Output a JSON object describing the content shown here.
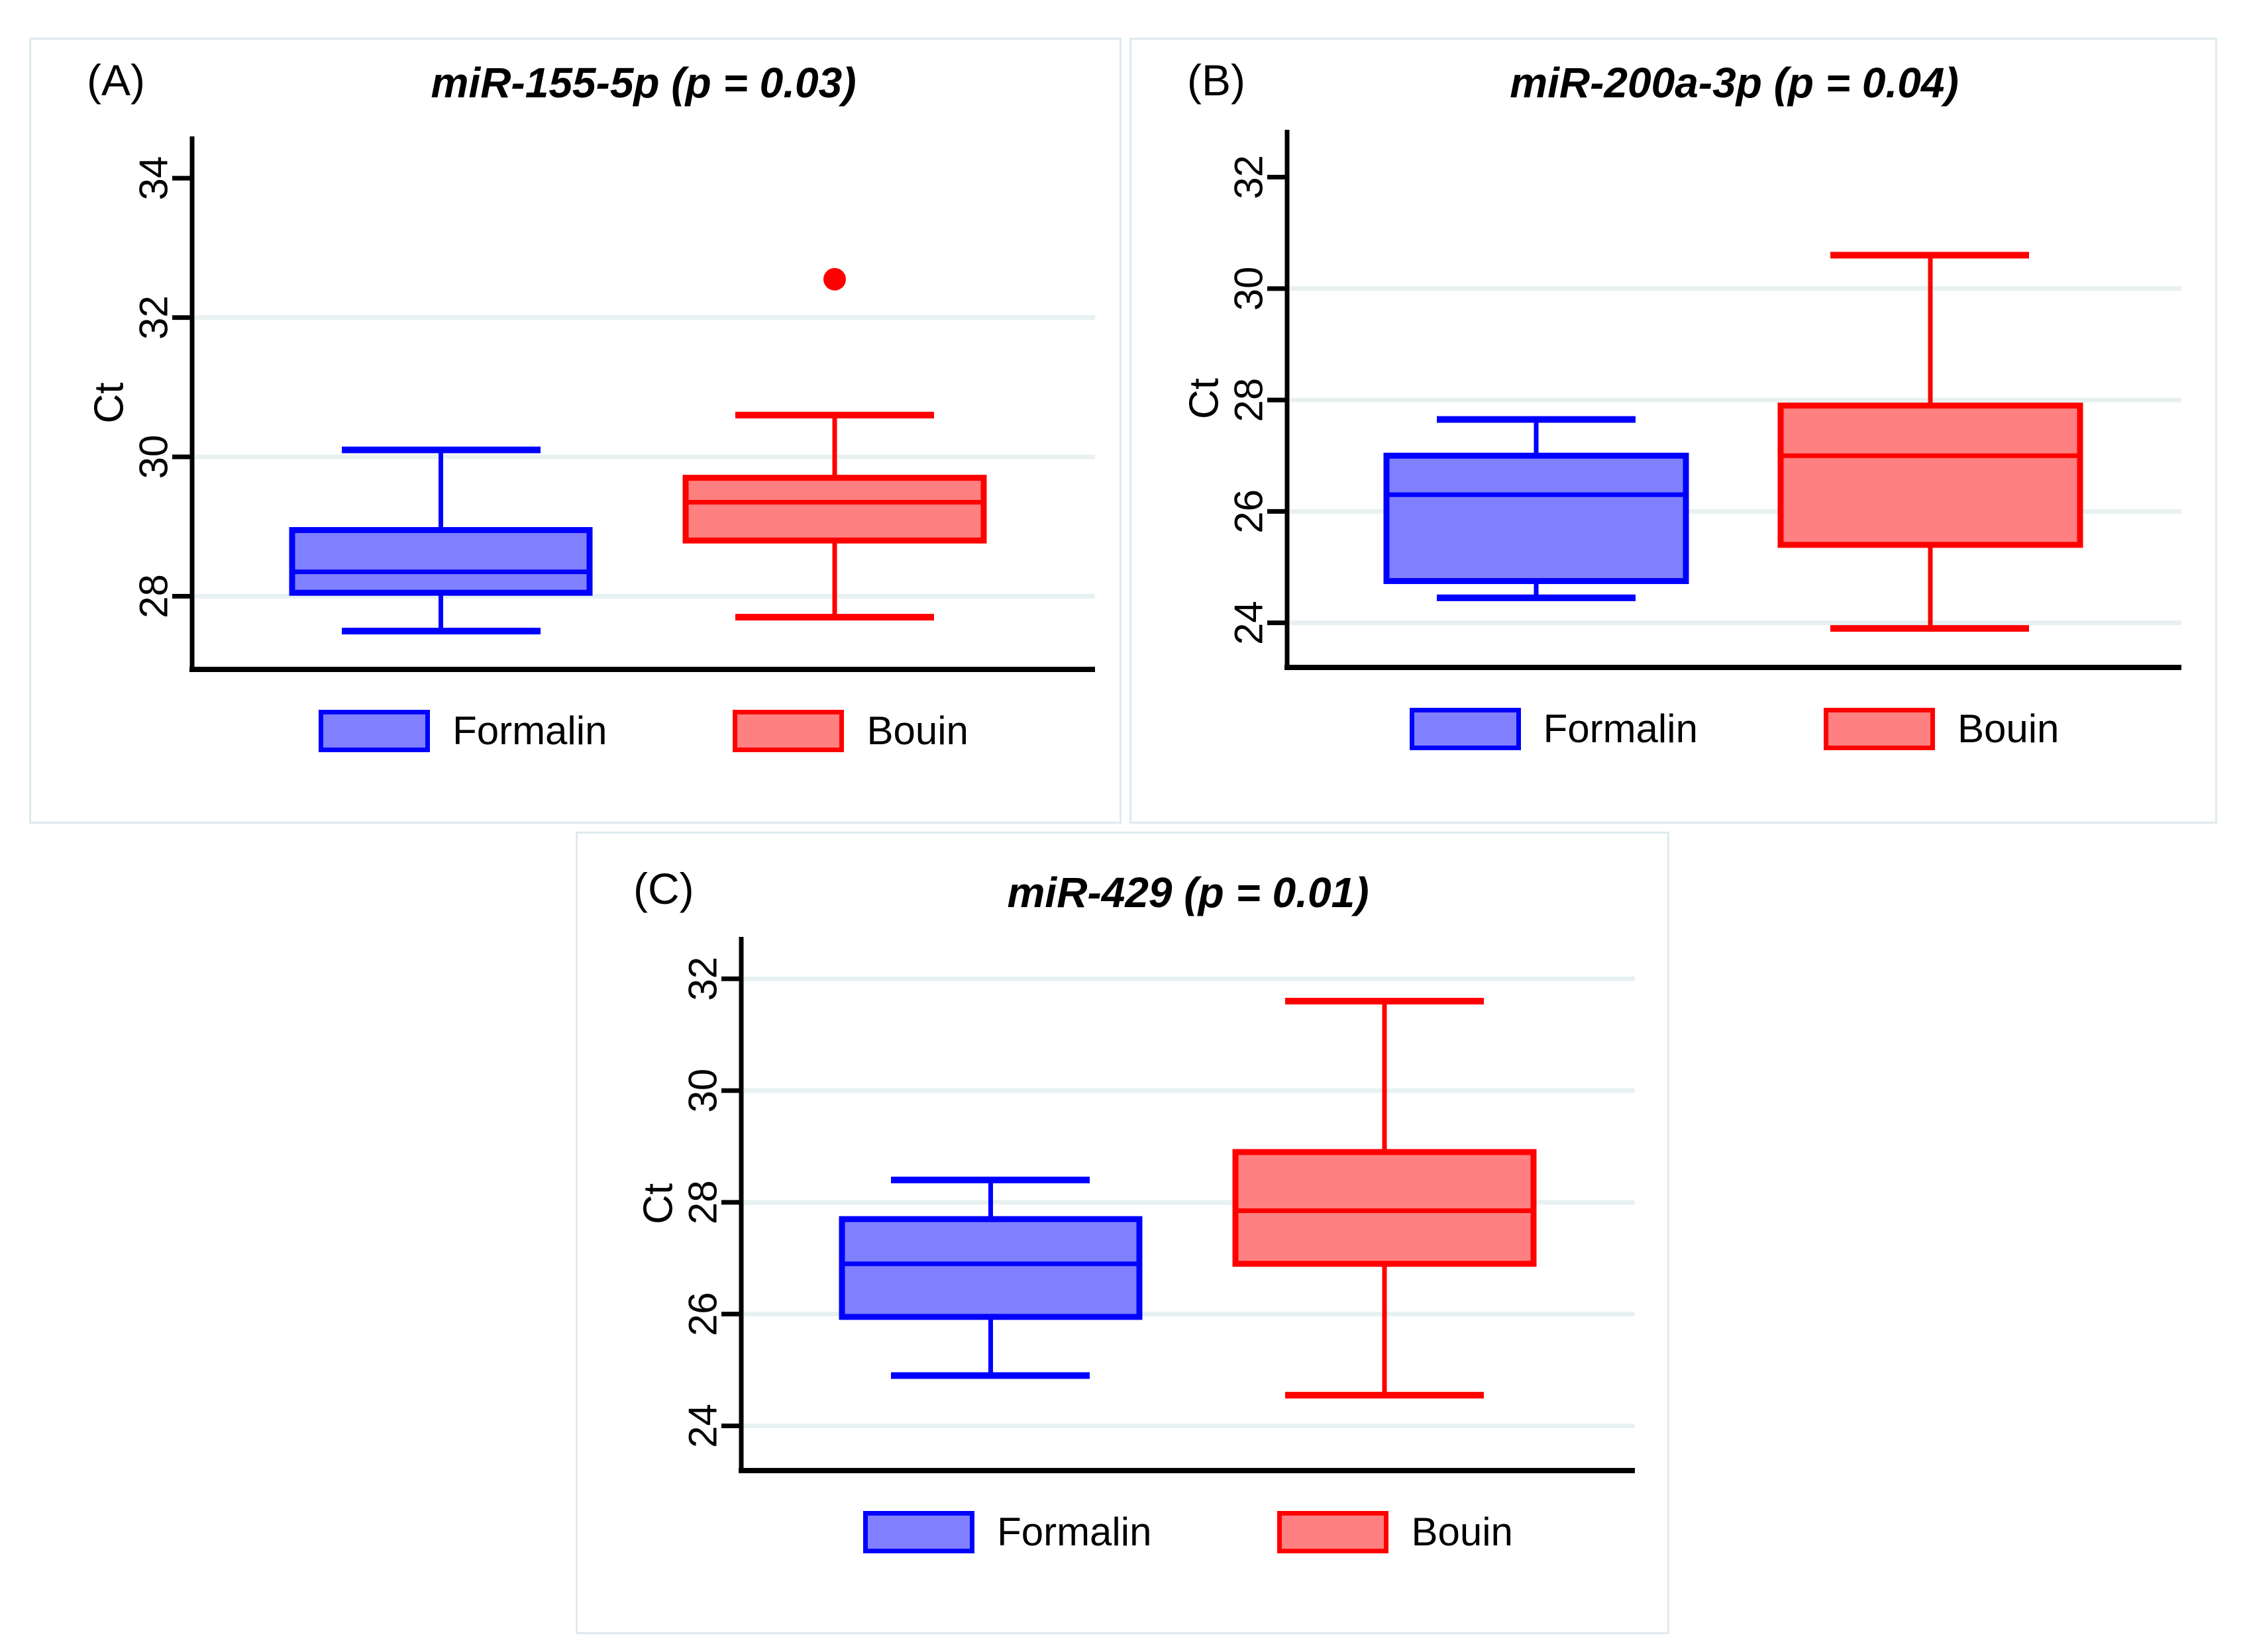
{
  "figure": {
    "ylabel": "Ct",
    "legend_labels": {
      "formalin": "Formalin",
      "bouin": "Bouin"
    },
    "colors": {
      "formalin_fill": "#8080FF",
      "formalin_stroke": "#0000FF",
      "bouin_fill": "#FF8080",
      "bouin_stroke": "#FF0000",
      "outlier": "#FF0000",
      "gridline": "#E8F1F1",
      "axis": "#000000",
      "card_border": "#DFEAED",
      "text": "#000000"
    }
  },
  "chart_data": [
    {
      "type": "boxplot",
      "panel_label": "(A)",
      "title": "miR-155-5p",
      "p_value_text": "p = 0.03",
      "title_full": "miR-155-5p (p = 0.03)",
      "ylabel": "Ct",
      "yticks": [
        28,
        30,
        32,
        34
      ],
      "gridlines": [
        28,
        30,
        32
      ],
      "ylim": [
        26.95,
        34.6
      ],
      "legend": [
        "Formalin",
        "Bouin"
      ],
      "legend_position": "bottom",
      "groups": [
        {
          "name": "Formalin",
          "whisker_low": 27.5,
          "q1": 28.05,
          "median": 28.35,
          "q3": 28.95,
          "whisker_high": 30.1,
          "outliers": []
        },
        {
          "name": "Bouin",
          "whisker_low": 27.7,
          "q1": 28.8,
          "median": 29.35,
          "q3": 29.7,
          "whisker_high": 30.6,
          "outliers": [
            32.55
          ]
        }
      ]
    },
    {
      "type": "boxplot",
      "panel_label": "(B)",
      "title": "miR-200a-3p",
      "p_value_text": "p = 0.04",
      "title_full": "miR-200a-3p (p = 0.04)",
      "ylabel": "Ct",
      "yticks": [
        24,
        26,
        28,
        30,
        32
      ],
      "gridlines": [
        24,
        26,
        28,
        30
      ],
      "ylim": [
        23.2,
        32.85
      ],
      "legend": [
        "Formalin",
        "Bouin"
      ],
      "legend_position": "bottom",
      "groups": [
        {
          "name": "Formalin",
          "whisker_low": 24.45,
          "q1": 24.75,
          "median": 26.3,
          "q3": 27.0,
          "whisker_high": 27.65,
          "outliers": []
        },
        {
          "name": "Bouin",
          "whisker_low": 23.9,
          "q1": 25.4,
          "median": 27.0,
          "q3": 27.9,
          "whisker_high": 30.6,
          "outliers": []
        }
      ]
    },
    {
      "type": "boxplot",
      "panel_label": "(C)",
      "title": "miR-429",
      "p_value_text": "p = 0.01",
      "title_full": "miR-429 (p = 0.01)",
      "ylabel": "Ct",
      "yticks": [
        24,
        26,
        28,
        30,
        32
      ],
      "gridlines": [
        24,
        26,
        28,
        30,
        32
      ],
      "ylim": [
        23.2,
        32.75
      ],
      "legend": [
        "Formalin",
        "Bouin"
      ],
      "legend_position": "bottom",
      "groups": [
        {
          "name": "Formalin",
          "whisker_low": 24.9,
          "q1": 25.95,
          "median": 26.9,
          "q3": 27.7,
          "whisker_high": 28.4,
          "outliers": []
        },
        {
          "name": "Bouin",
          "whisker_low": 24.55,
          "q1": 26.9,
          "median": 27.85,
          "q3": 28.9,
          "whisker_high": 31.6,
          "outliers": []
        }
      ]
    }
  ]
}
